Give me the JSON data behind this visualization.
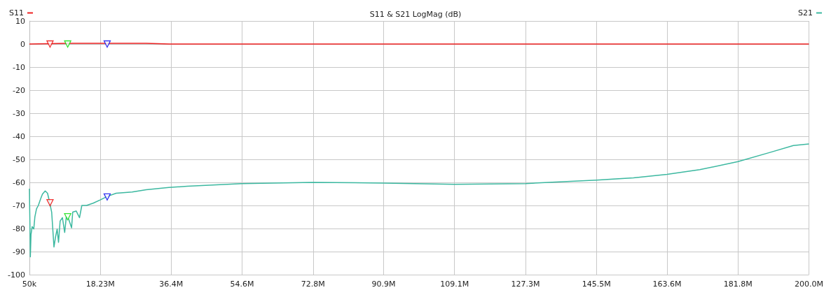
{
  "chart_data": {
    "type": "line",
    "title": "S11 & S21 LogMag (dB)",
    "legend": "top",
    "grid": true,
    "marker": "none",
    "line_style": "solid",
    "xlim": [
      50000,
      200000000
    ],
    "ylim": [
      -100,
      10
    ],
    "xticks": [
      {
        "value": 50000,
        "label": "50k"
      },
      {
        "value": 18230000,
        "label": "18.23M"
      },
      {
        "value": 36400000,
        "label": "36.4M"
      },
      {
        "value": 54600000,
        "label": "54.6M"
      },
      {
        "value": 72800000,
        "label": "72.8M"
      },
      {
        "value": 90900000,
        "label": "90.9M"
      },
      {
        "value": 109100000,
        "label": "109.1M"
      },
      {
        "value": 127300000,
        "label": "127.3M"
      },
      {
        "value": 145500000,
        "label": "145.5M"
      },
      {
        "value": 163600000,
        "label": "163.6M"
      },
      {
        "value": 181800000,
        "label": "181.8M"
      },
      {
        "value": 200000000,
        "label": "200.0M"
      }
    ],
    "yticks": [
      -100,
      -90,
      -80,
      -70,
      -60,
      -50,
      -40,
      -30,
      -20,
      -10,
      0,
      10
    ],
    "series": [
      {
        "name": "S11",
        "color": "#ee2222",
        "x": [
          50000,
          10000000,
          20000000,
          30000000,
          36000000,
          40000000,
          60000000,
          100000000,
          150000000,
          200000000
        ],
        "values": [
          0,
          0.3,
          0.3,
          0.3,
          0,
          0,
          0,
          0,
          0,
          0
        ]
      },
      {
        "name": "S21",
        "color": "#3cb8a0",
        "x": [
          50000,
          170000,
          290000,
          460000,
          760000,
          1170000,
          1460000,
          1870000,
          2340000,
          2930000,
          3400000,
          4100000,
          4700000,
          5170000,
          5760000,
          6350000,
          6760000,
          7170000,
          7520000,
          7930000,
          8520000,
          9100000,
          9520000,
          10100000,
          10870000,
          11160000,
          12050000,
          12900000,
          13500000,
          14700000,
          16400000,
          18200000,
          20000000,
          22300000,
          26400000,
          30000000,
          35800000,
          40500000,
          54600000,
          72800000,
          90900000,
          109100000,
          127300000,
          136000000,
          145500000,
          155000000,
          163600000,
          172000000,
          181800000,
          190000000,
          196000000,
          200000000
        ],
        "values": [
          -62.7,
          -76.3,
          -92.3,
          -82.6,
          -79.2,
          -80.2,
          -74.9,
          -71.5,
          -70,
          -67.1,
          -65.1,
          -63.7,
          -64.7,
          -68.1,
          -72.9,
          -88,
          -83.6,
          -80.2,
          -86,
          -76.8,
          -75.3,
          -81.7,
          -74.9,
          -75.8,
          -79.7,
          -72.9,
          -72.4,
          -75.3,
          -70,
          -70,
          -69,
          -67.6,
          -66.1,
          -64.7,
          -64.2,
          -63.2,
          -62.2,
          -61.7,
          -60.5,
          -60,
          -60.3,
          -60.8,
          -60.5,
          -59.8,
          -59,
          -58,
          -56.5,
          -54.5,
          -51,
          -47,
          -44,
          -43.3
        ]
      },
      {
        "type": "scatter",
        "marker": "triangle",
        "x": [
          5340000,
          9870000,
          20000000,
          5340000,
          9870000,
          20000000
        ],
        "values": [
          0,
          0,
          0,
          -68.8,
          -74.9,
          -66.3
        ],
        "colors": [
          "#ee0000",
          "#00dd00",
          "#0000ee",
          "#ee0000",
          "#00dd00",
          "#0000ee"
        ]
      }
    ]
  }
}
